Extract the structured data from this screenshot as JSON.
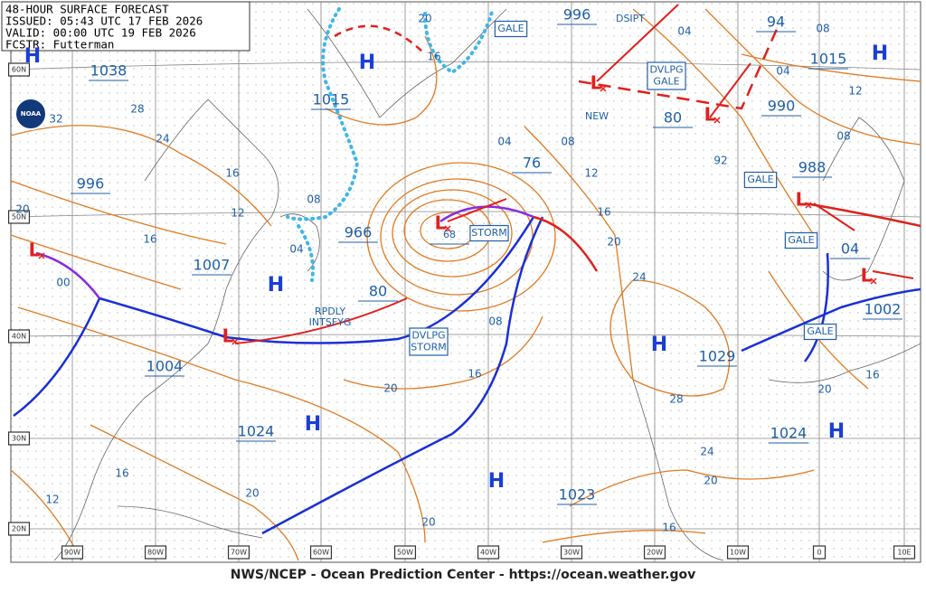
{
  "header": {
    "title": "48-HOUR SURFACE FORECAST",
    "issued": "ISSUED: 05:43 UTC 17 FEB 2026",
    "valid": "VALID:  00:00 UTC 19 FEB 2026",
    "forecaster": "FCSTR: Futterman"
  },
  "logo": "NOAA",
  "footer": "NWS/NCEP - Ocean Prediction Center - https://ocean.weather.gov",
  "latitude_labels": [
    "60N",
    "50N",
    "40N",
    "30N",
    "20N"
  ],
  "longitude_labels": [
    "90W",
    "80W",
    "70W",
    "60W",
    "50W",
    "40W",
    "30W",
    "20W",
    "10W",
    "0",
    "10E"
  ],
  "pressure_labels": [
    "1038",
    "996",
    "1007",
    "1004",
    "1024",
    "1015",
    "966",
    "80",
    "996",
    "1015",
    "990",
    "988",
    "1029",
    "1024",
    "1023",
    "1002",
    "04",
    "94",
    "80",
    "76",
    "68"
  ],
  "isobar_labels": [
    "32",
    "28",
    "24",
    "16",
    "20",
    "16",
    "12",
    "08",
    "04",
    "00",
    "20",
    "16",
    "04",
    "08",
    "12",
    "16",
    "20",
    "24",
    "28",
    "24",
    "20",
    "16",
    "20",
    "20",
    "16",
    "12",
    "20",
    "16",
    "08",
    "04",
    "08",
    "04",
    "12",
    "08",
    "92",
    "16",
    "20"
  ],
  "warnings": [
    [
      "GALE"
    ],
    [
      "DVLPG",
      "GALE"
    ],
    [
      "STORM"
    ],
    [
      "DVLPG",
      "STORM"
    ],
    [
      "GALE"
    ],
    [
      "GALE"
    ],
    [
      "GALE"
    ]
  ],
  "annotations": [
    [
      "RPDLY",
      "INTSFYG"
    ],
    [
      "DSIPT"
    ],
    [
      "NEW"
    ]
  ],
  "highs": [
    "H",
    "H",
    "H",
    "H",
    "H",
    "H",
    "H",
    "H"
  ],
  "lows": [
    "L",
    "L",
    "L",
    "L",
    "L",
    "L",
    "L"
  ]
}
